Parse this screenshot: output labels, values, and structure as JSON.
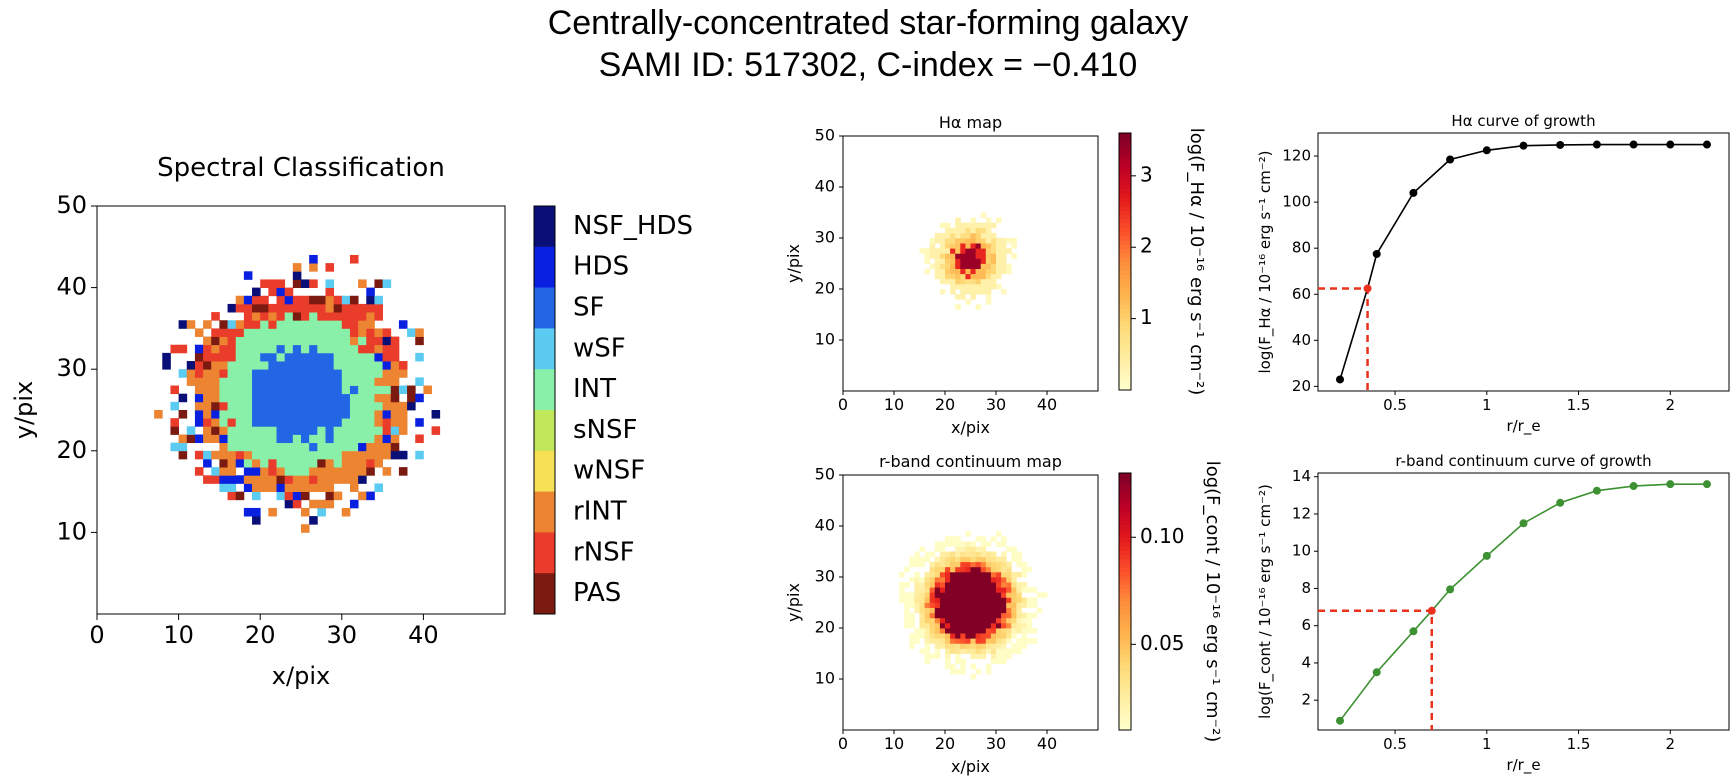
{
  "title_line1": "Centrally-concentrated star-forming galaxy",
  "title_line2": "SAMI ID: 517302, C-index = −0.410",
  "chart_data": [
    {
      "id": "classification",
      "type": "heatmap",
      "title": "Spectral Classification",
      "xlabel": "x/pix",
      "ylabel": "y/pix",
      "xlim": [
        0,
        50
      ],
      "ylim": [
        0,
        50
      ],
      "xticks": [
        0,
        10,
        20,
        30,
        40
      ],
      "yticks": [
        10,
        20,
        30,
        40,
        50
      ],
      "legend": [
        {
          "label": "NSF_HDS",
          "color": "#0a0f78"
        },
        {
          "label": "HDS",
          "color": "#0a20e0"
        },
        {
          "label": "SF",
          "color": "#2266e6"
        },
        {
          "label": "wSF",
          "color": "#5ccbf2"
        },
        {
          "label": "INT",
          "color": "#88f0a8"
        },
        {
          "label": "sNSF",
          "color": "#c0e85a"
        },
        {
          "label": "wNSF",
          "color": "#f6e054"
        },
        {
          "label": "rINT",
          "color": "#ec8432"
        },
        {
          "label": "rNSF",
          "color": "#ea3c2a"
        },
        {
          "label": "PAS",
          "color": "#7a1a10"
        }
      ],
      "center": [
        25,
        27
      ],
      "regions": [
        {
          "class": "SF",
          "max_radius_pix": 6
        },
        {
          "class": "INT",
          "max_radius_pix": 10
        },
        {
          "class": "rINT",
          "max_radius_pix": 13
        },
        {
          "class": "rNSF",
          "max_radius_pix": 15
        }
      ]
    },
    {
      "id": "ha_map",
      "type": "heatmap",
      "title": "Hα map",
      "xlabel": "x/pix",
      "ylabel": "y/pix",
      "xlim": [
        0,
        50
      ],
      "ylim": [
        0,
        50
      ],
      "xticks": [
        0,
        10,
        20,
        30,
        40
      ],
      "yticks": [
        10,
        20,
        30,
        40,
        50
      ],
      "colorbar_label": "log(F_Hα / 10⁻¹⁶ erg s⁻¹ cm⁻²)",
      "colorbar_ticks": [
        1,
        2,
        3
      ],
      "colorbar_range": [
        0,
        3.6
      ],
      "center": [
        25,
        26
      ],
      "peak_value": 3.5
    },
    {
      "id": "ha_growth",
      "type": "line",
      "title": "Hα curve of growth",
      "xlabel": "r/r_e",
      "ylabel": "log(F_Hα / 10⁻¹⁶ erg s⁻¹ cm⁻²)",
      "x": [
        0.2,
        0.35,
        0.4,
        0.6,
        0.8,
        1.0,
        1.2,
        1.4,
        1.6,
        1.8,
        2.0,
        2.2
      ],
      "y": [
        23,
        62.5,
        77.5,
        104,
        118.5,
        122.5,
        124.5,
        124.8,
        125,
        125,
        125,
        125
      ],
      "color": "#000000",
      "highlight": {
        "x": 0.35,
        "y": 62.5
      },
      "xlim": [
        0.08,
        2.32
      ],
      "ylim": [
        18,
        130
      ],
      "xticks": [
        0.5,
        1.0,
        1.5,
        2.0
      ],
      "yticks": [
        20,
        40,
        60,
        80,
        100,
        120
      ]
    },
    {
      "id": "cont_map",
      "type": "heatmap",
      "title": "r-band continuum map",
      "xlabel": "x/pix",
      "ylabel": "y/pix",
      "xlim": [
        0,
        50
      ],
      "ylim": [
        0,
        50
      ],
      "xticks": [
        0,
        10,
        20,
        30,
        40
      ],
      "yticks": [
        10,
        20,
        30,
        40,
        50
      ],
      "colorbar_label": "log(F_cont / 10⁻¹⁶ erg s⁻¹ cm⁻²)",
      "colorbar_ticks": [
        0.05,
        0.1
      ],
      "colorbar_range": [
        0.01,
        0.13
      ],
      "center": [
        25,
        25
      ],
      "peak_value": 0.13
    },
    {
      "id": "cont_growth",
      "type": "line",
      "title": "r-band continuum curve of growth",
      "xlabel": "r/r_e",
      "ylabel": "log(F_cont / 10⁻¹⁶ erg s⁻¹ cm⁻²)",
      "x": [
        0.2,
        0.4,
        0.6,
        0.7,
        0.8,
        1.0,
        1.2,
        1.4,
        1.6,
        1.8,
        2.0,
        2.2
      ],
      "y": [
        0.9,
        3.5,
        5.7,
        6.8,
        7.95,
        9.75,
        11.5,
        12.6,
        13.25,
        13.5,
        13.6,
        13.6
      ],
      "color": "#3d9132",
      "highlight": {
        "x": 0.7,
        "y": 6.8
      },
      "xlim": [
        0.08,
        2.32
      ],
      "ylim": [
        0.4,
        14.2
      ],
      "xticks": [
        0.5,
        1.0,
        1.5,
        2.0
      ],
      "yticks": [
        2,
        4,
        6,
        8,
        10,
        12,
        14
      ]
    }
  ]
}
